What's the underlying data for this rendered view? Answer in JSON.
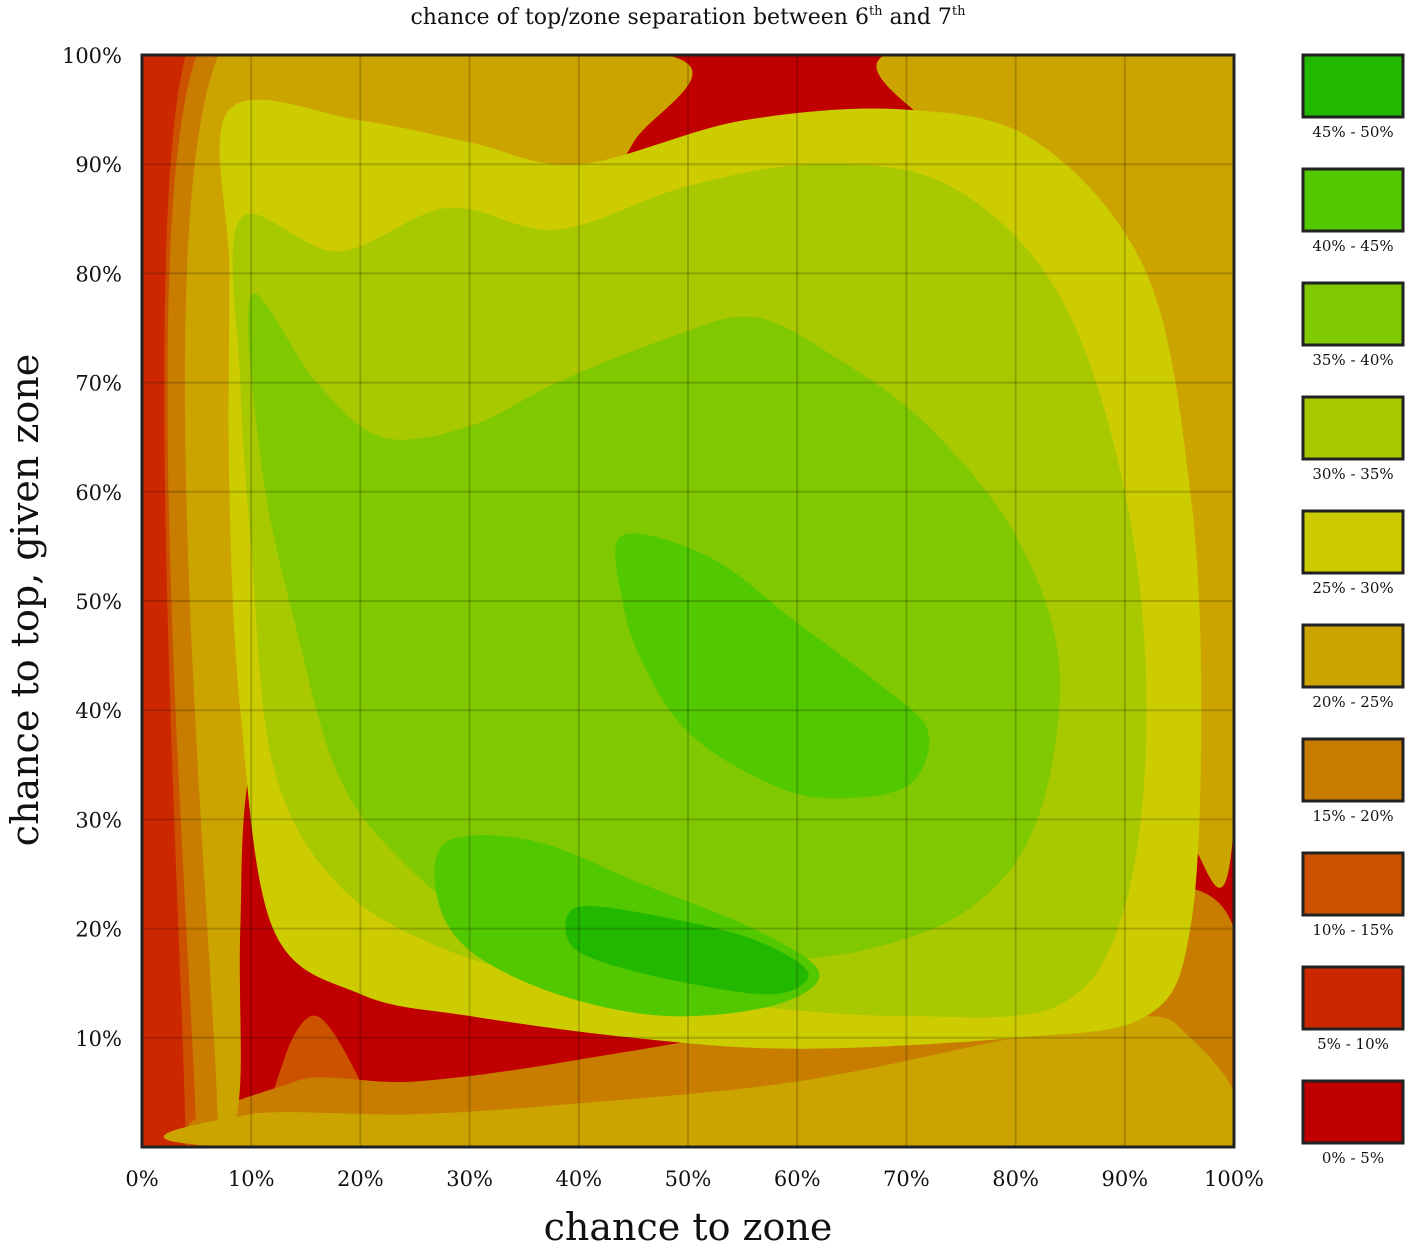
{
  "chart_data": {
    "type": "heatmap",
    "title": "chance of top/zone separation between 6",
    "title_sup1": "th",
    "title_mid": " and 7",
    "title_sup2": "th",
    "xlabel": "chance to zone",
    "ylabel": "chance to top, given zone",
    "x_ticks": [
      "0%",
      "10%",
      "20%",
      "30%",
      "40%",
      "50%",
      "60%",
      "70%",
      "80%",
      "90%",
      "100%"
    ],
    "y_ticks": [
      "100%",
      "90%",
      "80%",
      "70%",
      "60%",
      "50%",
      "40%",
      "30%",
      "20%",
      "10%"
    ],
    "xlim": [
      0,
      100
    ],
    "ylim": [
      0,
      100
    ],
    "grid": true,
    "legend_position": "right",
    "levels": [
      {
        "label": "45% - 50%",
        "color": "#22b800"
      },
      {
        "label": "40% - 45%",
        "color": "#52c800"
      },
      {
        "label": "35% - 40%",
        "color": "#80c800"
      },
      {
        "label": "30% - 35%",
        "color": "#a8c800"
      },
      {
        "label": "25% - 30%",
        "color": "#cccc00"
      },
      {
        "label": "20% - 25%",
        "color": "#cca400"
      },
      {
        "label": "15% - 20%",
        "color": "#c87c00"
      },
      {
        "label": "10% - 15%",
        "color": "#cc5200"
      },
      {
        "label": "5% - 10%",
        "color": "#cc2800"
      },
      {
        "label": "0% - 5%",
        "color": "#c00000"
      }
    ],
    "regions": [
      {
        "level": 8,
        "poly": [
          [
            0,
            100
          ],
          [
            25,
            100
          ],
          [
            24,
            80
          ],
          [
            22,
            70
          ],
          [
            20,
            60
          ],
          [
            18,
            55
          ],
          [
            14,
            50
          ],
          [
            10,
            45
          ],
          [
            6,
            40
          ],
          [
            5,
            30
          ],
          [
            4,
            20
          ],
          [
            4,
            10
          ],
          [
            4,
            0
          ],
          [
            0,
            0
          ]
        ]
      },
      {
        "level": 8,
        "poly": [
          [
            88,
            100
          ],
          [
            100,
            100
          ],
          [
            100,
            75
          ],
          [
            96,
            70
          ],
          [
            90,
            80
          ],
          [
            86,
            90
          ]
        ]
      },
      {
        "level": 8,
        "poly": [
          [
            80,
            0
          ],
          [
            100,
            0
          ],
          [
            100,
            6
          ],
          [
            92,
            8
          ],
          [
            85,
            6
          ]
        ]
      },
      {
        "level": 7,
        "poly": [
          [
            4,
            100
          ],
          [
            30,
            100
          ],
          [
            30,
            85
          ],
          [
            26,
            72
          ],
          [
            22,
            60
          ],
          [
            18,
            50
          ],
          [
            10,
            40
          ],
          [
            6,
            30
          ],
          [
            5,
            15
          ],
          [
            5,
            0
          ],
          [
            4,
            0
          ]
        ]
      },
      {
        "level": 7,
        "poly": [
          [
            80,
            100
          ],
          [
            100,
            100
          ],
          [
            100,
            60
          ],
          [
            96,
            55
          ],
          [
            92,
            65
          ],
          [
            88,
            78
          ],
          [
            84,
            90
          ]
        ]
      },
      {
        "level": 7,
        "poly": [
          [
            70,
            0
          ],
          [
            100,
            0
          ],
          [
            100,
            14
          ],
          [
            92,
            16
          ],
          [
            80,
            12
          ],
          [
            72,
            6
          ]
        ]
      },
      {
        "level": 7,
        "poly": [
          [
            12,
            0
          ],
          [
            22,
            0
          ],
          [
            20,
            6
          ],
          [
            16,
            12
          ],
          [
            13,
            8
          ]
        ]
      },
      {
        "level": 6,
        "poly": [
          [
            5,
            100
          ],
          [
            40,
            100
          ],
          [
            38,
            90
          ],
          [
            32,
            80
          ],
          [
            27,
            70
          ],
          [
            22,
            60
          ],
          [
            15,
            50
          ],
          [
            10,
            40
          ],
          [
            7,
            30
          ],
          [
            7,
            10
          ],
          [
            7,
            0
          ],
          [
            5,
            0
          ]
        ]
      },
      {
        "level": 6,
        "poly": [
          [
            74,
            100
          ],
          [
            100,
            100
          ],
          [
            100,
            40
          ],
          [
            97,
            35
          ],
          [
            93,
            45
          ],
          [
            90,
            60
          ],
          [
            86,
            75
          ],
          [
            80,
            90
          ]
        ]
      },
      {
        "level": 6,
        "poly": [
          [
            10,
            0
          ],
          [
            100,
            0
          ],
          [
            100,
            20
          ],
          [
            92,
            24
          ],
          [
            80,
            20
          ],
          [
            60,
            12
          ],
          [
            40,
            8
          ],
          [
            25,
            6
          ],
          [
            14,
            6
          ]
        ]
      },
      {
        "level": 5,
        "poly": [
          [
            7,
            100
          ],
          [
            48,
            100
          ],
          [
            45,
            92
          ],
          [
            40,
            85
          ],
          [
            34,
            75
          ],
          [
            28,
            65
          ],
          [
            22,
            55
          ],
          [
            15,
            45
          ],
          [
            10,
            35
          ],
          [
            9,
            20
          ],
          [
            9,
            6
          ],
          [
            8,
            0
          ],
          [
            7,
            0
          ]
        ]
      },
      {
        "level": 5,
        "poly": [
          [
            68,
            100
          ],
          [
            100,
            100
          ],
          [
            100,
            30
          ],
          [
            96,
            28
          ],
          [
            92,
            38
          ],
          [
            88,
            55
          ],
          [
            84,
            72
          ],
          [
            78,
            88
          ]
        ]
      },
      {
        "level": 5,
        "poly": [
          [
            9,
            0
          ],
          [
            100,
            0
          ],
          [
            100,
            5
          ],
          [
            96,
            10
          ],
          [
            92,
            12
          ],
          [
            80,
            10
          ],
          [
            60,
            6
          ],
          [
            40,
            4
          ],
          [
            25,
            3
          ],
          [
            10,
            3
          ]
        ]
      },
      {
        "level": 4,
        "poly": [
          [
            8,
            95
          ],
          [
            20,
            94
          ],
          [
            30,
            92
          ],
          [
            40,
            90
          ],
          [
            55,
            94
          ],
          [
            70,
            95
          ],
          [
            82,
            92
          ],
          [
            92,
            80
          ],
          [
            96,
            60
          ],
          [
            97,
            40
          ],
          [
            96,
            20
          ],
          [
            92,
            12
          ],
          [
            80,
            10
          ],
          [
            60,
            9
          ],
          [
            45,
            10
          ],
          [
            30,
            12
          ],
          [
            20,
            14
          ],
          [
            12,
            20
          ],
          [
            9,
            40
          ],
          [
            8,
            60
          ],
          [
            8,
            80
          ]
        ]
      },
      {
        "level": 3,
        "poly": [
          [
            9,
            85
          ],
          [
            18,
            82
          ],
          [
            28,
            86
          ],
          [
            38,
            84
          ],
          [
            50,
            88
          ],
          [
            62,
            90
          ],
          [
            74,
            88
          ],
          [
            84,
            78
          ],
          [
            90,
            60
          ],
          [
            92,
            40
          ],
          [
            90,
            22
          ],
          [
            84,
            13
          ],
          [
            70,
            12
          ],
          [
            55,
            13
          ],
          [
            40,
            15
          ],
          [
            28,
            18
          ],
          [
            18,
            24
          ],
          [
            12,
            35
          ],
          [
            10,
            55
          ],
          [
            9,
            70
          ]
        ]
      },
      {
        "level": 2,
        "poly": [
          [
            10,
            78
          ],
          [
            16,
            70
          ],
          [
            22,
            65
          ],
          [
            30,
            66
          ],
          [
            38,
            70
          ],
          [
            48,
            74
          ],
          [
            56,
            76
          ],
          [
            64,
            72
          ],
          [
            72,
            66
          ],
          [
            80,
            56
          ],
          [
            84,
            44
          ],
          [
            82,
            30
          ],
          [
            76,
            22
          ],
          [
            66,
            18
          ],
          [
            54,
            17
          ],
          [
            42,
            18
          ],
          [
            32,
            20
          ],
          [
            24,
            26
          ],
          [
            18,
            34
          ],
          [
            14,
            48
          ],
          [
            11,
            62
          ]
        ]
      },
      {
        "level": 1,
        "poly": [
          [
            44,
            56
          ],
          [
            52,
            54
          ],
          [
            60,
            48
          ],
          [
            68,
            42
          ],
          [
            72,
            38
          ],
          [
            70,
            33
          ],
          [
            62,
            32
          ],
          [
            56,
            34
          ],
          [
            50,
            38
          ],
          [
            46,
            44
          ],
          [
            44,
            50
          ]
        ]
      },
      {
        "level": 1,
        "poly": [
          [
            28,
            28
          ],
          [
            36,
            28
          ],
          [
            46,
            24
          ],
          [
            56,
            20
          ],
          [
            62,
            16
          ],
          [
            58,
            13
          ],
          [
            48,
            12
          ],
          [
            38,
            14
          ],
          [
            30,
            18
          ],
          [
            27,
            23
          ]
        ]
      },
      {
        "level": 0,
        "poly": [
          [
            40,
            22
          ],
          [
            48,
            21
          ],
          [
            56,
            19
          ],
          [
            61,
            16
          ],
          [
            58,
            14
          ],
          [
            50,
            15
          ],
          [
            42,
            17
          ],
          [
            39,
            19
          ]
        ]
      }
    ]
  }
}
